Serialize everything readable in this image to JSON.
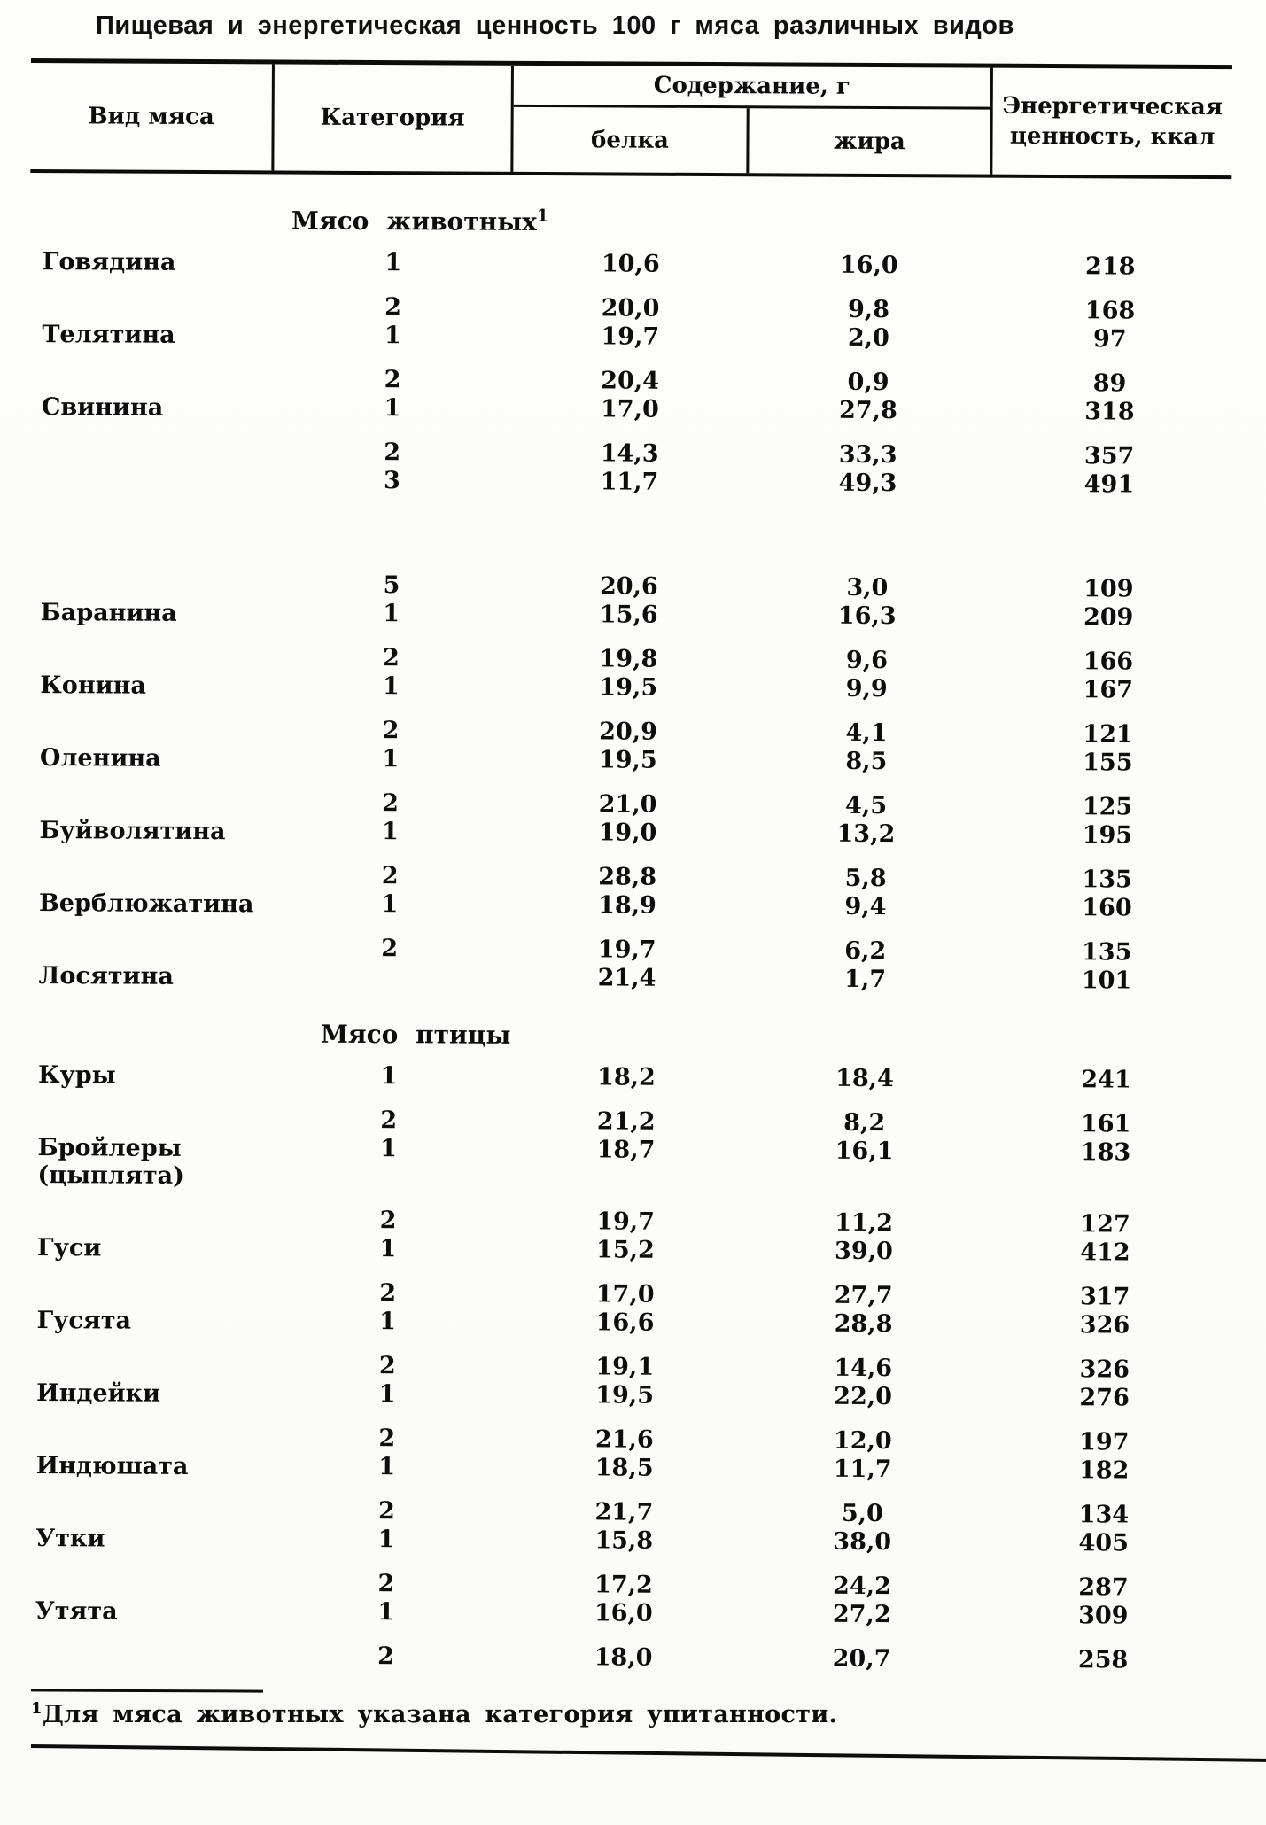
{
  "page": {
    "title": "Пищевая и энергетическая ценность 100 г мяса различных видов"
  },
  "table": {
    "headers": {
      "meat_type": "Вид мяса",
      "category": "Категория",
      "content": "Содержание, г",
      "protein": "белка",
      "fat": "жира",
      "energy": "Энергетическая ценность, ккал"
    },
    "sections": [
      {
        "heading": "Мясо животных",
        "heading_sup": "1",
        "rows": [
          {
            "name": "Говядина",
            "category": "1",
            "protein": "10,6",
            "fat": "16,0",
            "kcal": "218",
            "gap": "first"
          },
          {
            "name": "",
            "category": "2",
            "protein": "20,0",
            "fat": "9,8",
            "kcal": "168",
            "gap": "loose"
          },
          {
            "name": "Телятина",
            "category": "1",
            "protein": "19,7",
            "fat": "2,0",
            "kcal": "97",
            "gap": "tight"
          },
          {
            "name": "",
            "category": "2",
            "protein": "20,4",
            "fat": "0,9",
            "kcal": "89",
            "gap": "loose"
          },
          {
            "name": "Свинина",
            "category": "1",
            "protein": "17,0",
            "fat": "27,8",
            "kcal": "318",
            "gap": "tight"
          },
          {
            "name": "",
            "category": "2",
            "protein": "14,3",
            "fat": "33,3",
            "kcal": "357",
            "gap": "loose"
          },
          {
            "name": "",
            "category": "3",
            "protein": "11,7",
            "fat": "49,3",
            "kcal": "491",
            "gap": "tight"
          },
          {
            "name": "",
            "category": "5",
            "protein": "20,6",
            "fat": "3,0",
            "kcal": "109",
            "gap": "xl"
          },
          {
            "name": "Баранина",
            "category": "1",
            "protein": "15,6",
            "fat": "16,3",
            "kcal": "209",
            "gap": "tight"
          },
          {
            "name": "",
            "category": "2",
            "protein": "19,8",
            "fat": "9,6",
            "kcal": "166",
            "gap": "loose"
          },
          {
            "name": "Конина",
            "category": "1",
            "protein": "19,5",
            "fat": "9,9",
            "kcal": "167",
            "gap": "tight"
          },
          {
            "name": "",
            "category": "2",
            "protein": "20,9",
            "fat": "4,1",
            "kcal": "121",
            "gap": "loose"
          },
          {
            "name": "Оленина",
            "category": "1",
            "protein": "19,5",
            "fat": "8,5",
            "kcal": "155",
            "gap": "tight"
          },
          {
            "name": "",
            "category": "2",
            "protein": "21,0",
            "fat": "4,5",
            "kcal": "125",
            "gap": "loose"
          },
          {
            "name": "Буйволятина",
            "category": "1",
            "protein": "19,0",
            "fat": "13,2",
            "kcal": "195",
            "gap": "tight"
          },
          {
            "name": "",
            "category": "2",
            "protein": "28,8",
            "fat": "5,8",
            "kcal": "135",
            "gap": "loose"
          },
          {
            "name": "Верблюжатина",
            "category": "1",
            "protein": "18,9",
            "fat": "9,4",
            "kcal": "160",
            "gap": "tight"
          },
          {
            "name": "",
            "category": "2",
            "protein": "19,7",
            "fat": "6,2",
            "kcal": "135",
            "gap": "loose"
          },
          {
            "name": "Лосятина",
            "category": "",
            "protein": "21,4",
            "fat": "1,7",
            "kcal": "101",
            "gap": "tight"
          }
        ]
      },
      {
        "heading": "Мясо птицы",
        "rows": [
          {
            "name": "Куры",
            "category": "1",
            "protein": "18,2",
            "fat": "18,4",
            "kcal": "241",
            "gap": "first"
          },
          {
            "name": "",
            "category": "2",
            "protein": "21,2",
            "fat": "8,2",
            "kcal": "161",
            "gap": "loose"
          },
          {
            "name": "Бройлеры",
            "name2": "(цыплята)",
            "category": "1",
            "protein": "18,7",
            "fat": "16,1",
            "kcal": "183",
            "gap": "tight"
          },
          {
            "name": "",
            "category": "2",
            "protein": "19,7",
            "fat": "11,2",
            "kcal": "127",
            "gap": "loose"
          },
          {
            "name": "Гуси",
            "category": "1",
            "protein": "15,2",
            "fat": "39,0",
            "kcal": "412",
            "gap": "tight"
          },
          {
            "name": "",
            "category": "2",
            "protein": "17,0",
            "fat": "27,7",
            "kcal": "317",
            "gap": "loose"
          },
          {
            "name": "Гусята",
            "category": "1",
            "protein": "16,6",
            "fat": "28,8",
            "kcal": "326",
            "gap": "tight"
          },
          {
            "name": "",
            "category": "2",
            "protein": "19,1",
            "fat": "14,6",
            "kcal": "326",
            "gap": "loose"
          },
          {
            "name": "Индейки",
            "category": "1",
            "protein": "19,5",
            "fat": "22,0",
            "kcal": "276",
            "gap": "tight"
          },
          {
            "name": "",
            "category": "2",
            "protein": "21,6",
            "fat": "12,0",
            "kcal": "197",
            "gap": "loose"
          },
          {
            "name": "Индюшата",
            "category": "1",
            "protein": "18,5",
            "fat": "11,7",
            "kcal": "182",
            "gap": "tight"
          },
          {
            "name": "",
            "category": "2",
            "protein": "21,7",
            "fat": "5,0",
            "kcal": "134",
            "gap": "loose"
          },
          {
            "name": "Утки",
            "category": "1",
            "protein": "15,8",
            "fat": "38,0",
            "kcal": "405",
            "gap": "tight"
          },
          {
            "name": "",
            "category": "2",
            "protein": "17,2",
            "fat": "24,2",
            "kcal": "287",
            "gap": "loose"
          },
          {
            "name": "Утята",
            "category": "1",
            "protein": "16,0",
            "fat": "27,2",
            "kcal": "309",
            "gap": "tight"
          },
          {
            "name": "",
            "category": "2",
            "protein": "18,0",
            "fat": "20,7",
            "kcal": "258",
            "gap": "loose"
          }
        ]
      }
    ]
  },
  "footnote": {
    "marker": "1",
    "text": "Для мяса животных указана категория упитанности."
  }
}
